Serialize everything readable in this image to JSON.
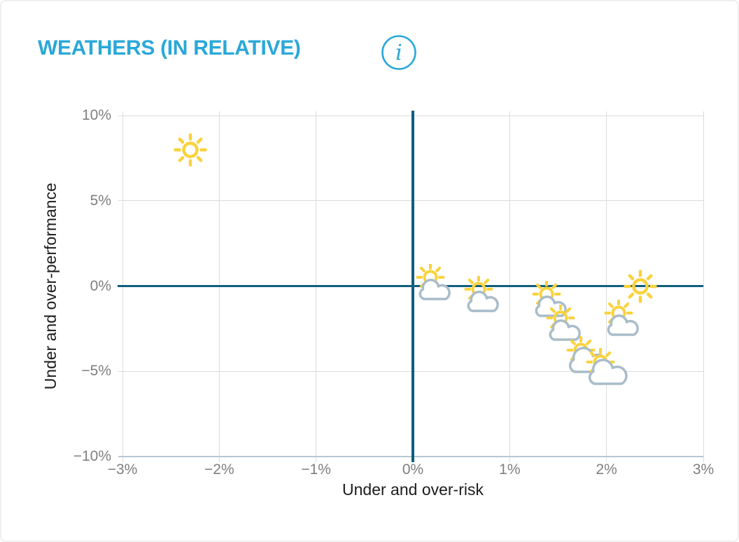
{
  "header": {
    "title": "WEATHERS (IN RELATIVE)",
    "title_color": "#29a8d8",
    "info_icon": "info-circle-icon"
  },
  "chart_data": {
    "type": "scatter",
    "title": "WEATHERS (IN RELATIVE)",
    "xlabel": "Under and over-risk",
    "ylabel": "Under and over-performance",
    "xlim": [
      -3,
      3
    ],
    "ylim": [
      -10,
      10
    ],
    "xticks": [
      -3,
      -2,
      -1,
      0,
      1,
      2,
      3
    ],
    "yticks": [
      10,
      5,
      0,
      -5,
      -10
    ],
    "x_tick_labels": [
      "−3%",
      "−2%",
      "−1%",
      "0%",
      "1%",
      "2%",
      "3%"
    ],
    "y_tick_labels": [
      "10%",
      "5%",
      "0%",
      "−5%",
      "−10%"
    ],
    "grid": true,
    "legend": "none",
    "grid_color": "#dcdcdc",
    "zero_axis_color": "#0f5e7d",
    "bottom_axis_color": "#b5c7d2",
    "icon_colors": {
      "sun": "#fad23c",
      "cloud": "#a9bcc9"
    },
    "points": [
      {
        "x": -2.3,
        "y": 8.0,
        "icon": "sun",
        "label": "sunny"
      },
      {
        "x": 0.2,
        "y": 0.2,
        "icon": "sun-small-cloud",
        "label": "partly-cloudy"
      },
      {
        "x": 0.7,
        "y": -0.5,
        "icon": "sun-small-cloud",
        "label": "partly-cloudy"
      },
      {
        "x": 1.4,
        "y": -0.8,
        "icon": "sun-small-cloud",
        "label": "partly-cloudy"
      },
      {
        "x": 1.55,
        "y": -2.2,
        "icon": "sun-small-cloud",
        "label": "partly-cloudy"
      },
      {
        "x": 1.8,
        "y": -4.1,
        "icon": "sun-big-cloud",
        "label": "mostly-cloudy"
      },
      {
        "x": 2.0,
        "y": -4.8,
        "icon": "sun-big-cloud",
        "label": "mostly-cloudy"
      },
      {
        "x": 2.15,
        "y": -1.9,
        "icon": "sun-small-cloud",
        "label": "partly-cloudy"
      },
      {
        "x": 2.35,
        "y": 0.0,
        "icon": "sun",
        "label": "sunny"
      }
    ]
  }
}
